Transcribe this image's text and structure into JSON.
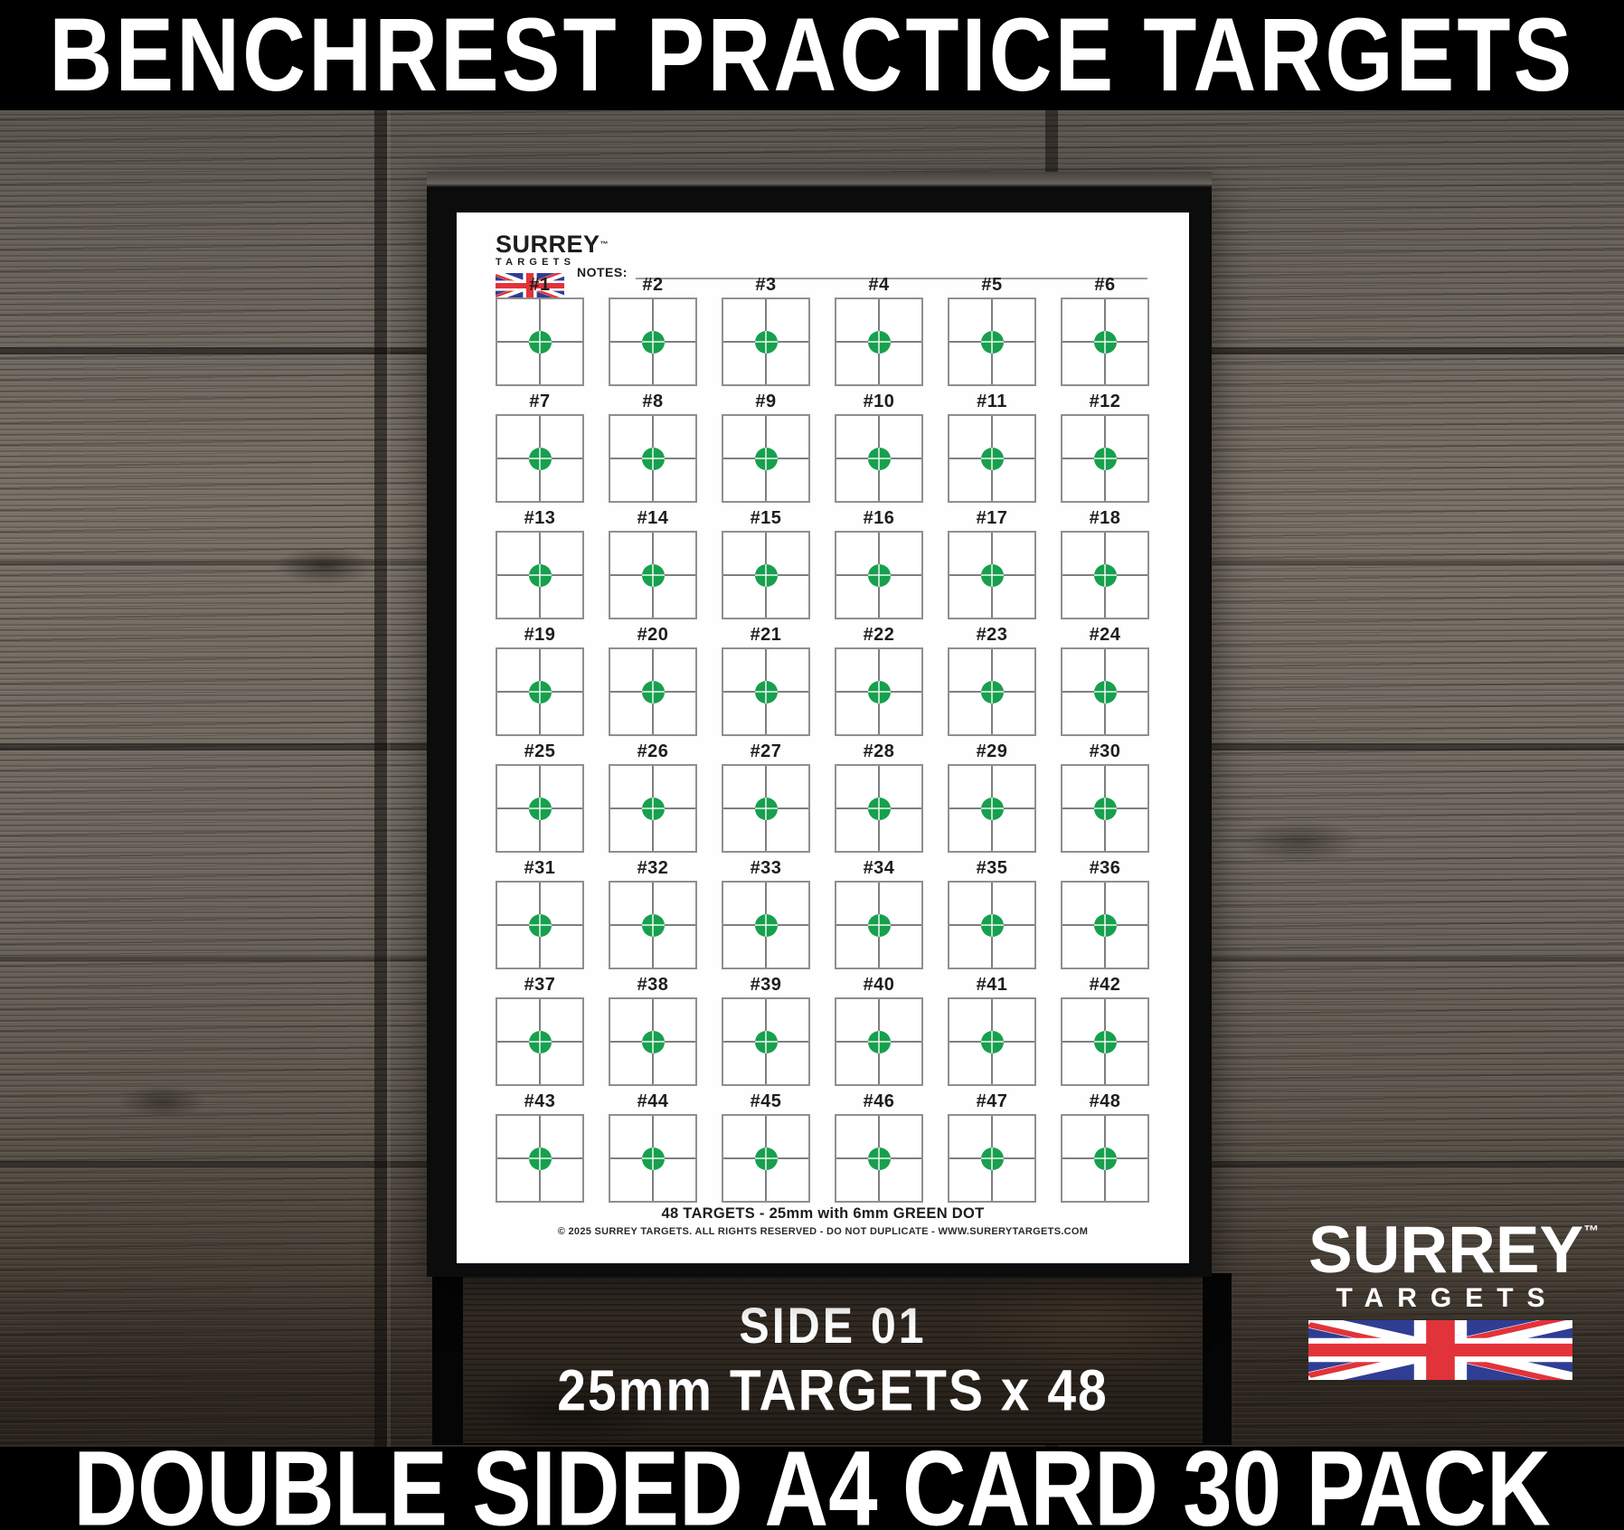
{
  "banners": {
    "top": "BENCHREST PRACTICE TARGETS",
    "bottom": "DOUBLE SIDED A4 CARD 30 PACK"
  },
  "sheet": {
    "brand": {
      "name": "SURREY",
      "tm": "™",
      "sub": "TARGETS"
    },
    "notes_label": "NOTES:",
    "targets": [
      "#1",
      "#2",
      "#3",
      "#4",
      "#5",
      "#6",
      "#7",
      "#8",
      "#9",
      "#10",
      "#11",
      "#12",
      "#13",
      "#14",
      "#15",
      "#16",
      "#17",
      "#18",
      "#19",
      "#20",
      "#21",
      "#22",
      "#23",
      "#24",
      "#25",
      "#26",
      "#27",
      "#28",
      "#29",
      "#30",
      "#31",
      "#32",
      "#33",
      "#34",
      "#35",
      "#36",
      "#37",
      "#38",
      "#39",
      "#40",
      "#41",
      "#42",
      "#43",
      "#44",
      "#45",
      "#46",
      "#47",
      "#48"
    ],
    "footer_line1": "48 TARGETS - 25mm with 6mm GREEN DOT",
    "footer_line2": "© 2025 SURREY TARGETS. ALL RIGHTS RESERVED - DO NOT DUPLICATE - WWW.SURERYTARGETS.COM"
  },
  "caption": {
    "line1": "SIDE 01",
    "line2": "25mm TARGETS x 48"
  },
  "badge": {
    "name": "SURREY",
    "tm": "™",
    "sub": "TARGETS"
  },
  "colors": {
    "dot_green": "#17A04E",
    "flag_red": "#E2333A",
    "flag_blue": "#2F3D94"
  }
}
